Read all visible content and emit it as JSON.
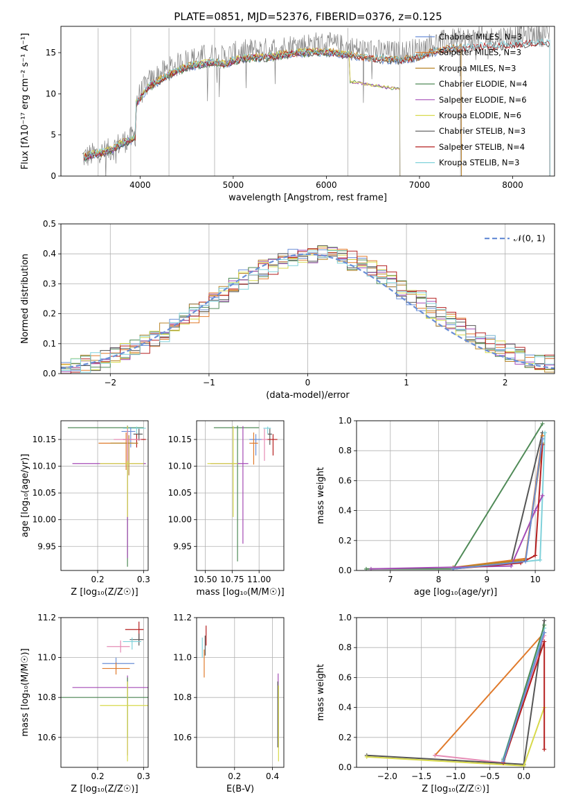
{
  "figure": {
    "title": "PLATE=0851, MJD=52376, FIBERID=0376, z=0.125",
    "colors": [
      "#6a8fd6",
      "#e07a2b",
      "#b9862a",
      "#4f8a57",
      "#a44ab5",
      "#d7d94a",
      "#555555",
      "#b41e1e",
      "#7fd1da",
      "#e58bb5"
    ]
  },
  "chart_data": [
    {
      "id": "spectrum",
      "type": "line",
      "xlabel": "wavelength [Angstrom, rest frame]",
      "ylabel": "Flux [fλ10⁻¹⁷ erg cm⁻² s⁻¹ A⁻¹]",
      "xlim": [
        3150,
        8450
      ],
      "ylim": [
        0,
        18.2
      ],
      "xticks": [
        4000,
        5000,
        6000,
        7000,
        8000
      ],
      "yticks": [
        0,
        5,
        10,
        15
      ],
      "grid": false,
      "legend_placement": "top-right",
      "observed": {
        "x": [
          3400,
          3500,
          3600,
          3700,
          3800,
          3900,
          4000,
          4100,
          4200,
          4300,
          4400,
          4500,
          4600,
          4700,
          4800,
          4900,
          5000,
          5100,
          5200,
          5300,
          5400,
          5500,
          5600,
          5700,
          5800,
          5900,
          6000,
          6100,
          6200,
          6300,
          6400,
          6500,
          6600,
          6700,
          6800,
          6900,
          7000,
          7100,
          7200,
          7300,
          7400,
          7500,
          7600,
          7700,
          7800,
          7900,
          8000,
          8100,
          8200
        ],
        "y": [
          4.2,
          4.8,
          5.2,
          6.0,
          7.5,
          8.2,
          10.0,
          11.5,
          12.3,
          13.0,
          13.5,
          14.1,
          14.3,
          14.6,
          14.7,
          14.4,
          14.9,
          15.1,
          15.3,
          15.3,
          15.4,
          15.6,
          15.8,
          15.9,
          16.0,
          16.1,
          16.0,
          15.9,
          15.7,
          15.5,
          15.3,
          15.2,
          15.1,
          15.0,
          15.0,
          15.2,
          15.4,
          15.9,
          16.2,
          16.4,
          16.5,
          16.6,
          16.7,
          16.8,
          16.7,
          16.9,
          17.0,
          17.1,
          17.2
        ]
      },
      "series": [
        {
          "name": "Chabrier MILES, N<sub>SSP</sub>=3",
          "label": "Chabrier MILES, N_SSP=3",
          "color": "#6a8fd6",
          "end": 7450
        },
        {
          "name": "Salpeter MILES, N_SSP=3",
          "label": "Salpeter MILES, N_SSP=3",
          "color": "#e07a2b",
          "end": 7450
        },
        {
          "name": "Kroupa MILES, N_SSP=3",
          "label": "Kroupa MILES, N_SSP=3",
          "color": "#b9862a",
          "end": 7450
        },
        {
          "name": "Chabrier ELODIE, N_SSP=4",
          "label": "Chabrier ELODIE, N_SSP=4",
          "color": "#4f8a57",
          "end": 6790
        },
        {
          "name": "Salpeter ELODIE, N_SSP=6",
          "label": "Salpeter ELODIE, N_SSP=6",
          "color": "#a44ab5",
          "end": 6790
        },
        {
          "name": "Kroupa ELODIE, N_SSP=6",
          "label": "Kroupa ELODIE, N_SSP=6",
          "color": "#d7d94a",
          "end": 6790
        },
        {
          "name": "Chabrier STELIB, N_SSP=3",
          "label": "Chabrier STELIB, N_SSP=3",
          "color": "#555555",
          "end": 8400
        },
        {
          "name": "Salpeter STELIB, N_SSP=4",
          "label": "Salpeter STELIB, N_SSP=4",
          "color": "#b41e1e",
          "end": 8400
        },
        {
          "name": "Kroupa STELIB, N_SSP=3",
          "label": "Kroupa STELIB, N_SSP=3",
          "color": "#7fd1da",
          "end": 8400
        }
      ]
    },
    {
      "id": "residuals",
      "type": "line",
      "xlabel": "(data-model)/error",
      "ylabel": "Normed distribution",
      "xlim": [
        -2.5,
        2.5
      ],
      "ylim": [
        0,
        0.5
      ],
      "xticks": [
        -2,
        -1,
        0,
        1,
        2
      ],
      "yticks": [
        0.0,
        0.1,
        0.2,
        0.3,
        0.4,
        0.5
      ],
      "grid": true,
      "legend_placement": "top-right",
      "gaussian_label": "𝒩(0, 1)",
      "histogram_series_count": 9
    },
    {
      "id": "age-vs-Z",
      "type": "scatter",
      "xlabel": "Z [log₁₀(Z/Z☉)]",
      "ylabel": "age  [log₁₀(age/yr)]",
      "xlim": [
        0.12,
        0.31
      ],
      "ylim": [
        9.905,
        10.185
      ],
      "xticks": [
        0.2,
        0.3
      ],
      "yticks": [
        9.95,
        10.0,
        10.05,
        10.1,
        10.15
      ],
      "grid": true,
      "points": [
        {
          "x": 0.265,
          "y": 10.172,
          "xerr": [
            0.13,
            0.035
          ],
          "yerr": [
            0.26,
            0.004
          ],
          "color": "#4f8a57"
        },
        {
          "x": 0.285,
          "y": 10.171,
          "xerr": [
            0.03,
            0.02
          ],
          "yerr": [
            0.01,
            0.003
          ],
          "color": "#7fd1da"
        },
        {
          "x": 0.272,
          "y": 10.165,
          "xerr": [
            0.02,
            0.01
          ],
          "yerr": [
            0.03,
            0.008
          ],
          "color": "#6a8fd6"
        },
        {
          "x": 0.29,
          "y": 10.16,
          "xerr": [
            0.012,
            0.008
          ],
          "yerr": [
            0.012,
            0.01
          ],
          "color": "#555555"
        },
        {
          "x": 0.285,
          "y": 10.15,
          "xerr": [
            0.03,
            0.02
          ],
          "yerr": [
            0.015,
            0.01
          ],
          "color": "#b41e1e"
        },
        {
          "x": 0.262,
          "y": 10.143,
          "xerr": [
            0.06,
            0.015
          ],
          "yerr": [
            0.05,
            0.02
          ],
          "color": "#e07a2b"
        },
        {
          "x": 0.268,
          "y": 10.143,
          "xerr": [
            0.04,
            0.02
          ],
          "yerr": [
            0.06,
            0.015
          ],
          "color": "#b9862a"
        },
        {
          "x": 0.265,
          "y": 10.105,
          "xerr": [
            0.12,
            0.04
          ],
          "yerr": [
            0.177,
            0.07
          ],
          "color": "#a44ab5"
        },
        {
          "x": 0.265,
          "y": 10.105,
          "xerr": [
            0.06,
            0.035
          ],
          "yerr": [
            0.1,
            0.07
          ],
          "color": "#d7d94a"
        },
        {
          "x": 0.265,
          "y": 10.15,
          "xerr": [
            0.03,
            0.03
          ],
          "yerr": [
            0.04,
            0.02
          ],
          "color": "#e58bb5"
        }
      ]
    },
    {
      "id": "age-vs-mass",
      "type": "scatter",
      "xlabel": "mass [log₁₀(M/M☉)]",
      "ylabel": "",
      "xlim": [
        10.42,
        11.23
      ],
      "ylim": [
        9.905,
        10.185
      ],
      "xticks": [
        10.5,
        10.75,
        11.0
      ],
      "yticks": [
        9.95,
        10.0,
        10.05,
        10.1,
        10.15
      ],
      "grid": true,
      "points": [
        {
          "x": 10.8,
          "y": 10.172,
          "xerr": [
            0.22,
            0.2
          ],
          "yerr": [
            0.25,
            0.004
          ],
          "color": "#4f8a57"
        },
        {
          "x": 11.08,
          "y": 10.171,
          "xerr": [
            0.04,
            0.03
          ],
          "yerr": [
            0.01,
            0.003
          ],
          "color": "#7fd1da"
        },
        {
          "x": 10.97,
          "y": 10.15,
          "xerr": [
            0.06,
            0.06
          ],
          "yerr": [
            0.03,
            0.01
          ],
          "color": "#6a8fd6"
        },
        {
          "x": 11.1,
          "y": 10.16,
          "xerr": [
            0.02,
            0.02
          ],
          "yerr": [
            0.02,
            0.01
          ],
          "color": "#555555"
        },
        {
          "x": 11.13,
          "y": 10.15,
          "xerr": [
            0.06,
            0.04
          ],
          "yerr": [
            0.03,
            0.01
          ],
          "color": "#b41e1e"
        },
        {
          "x": 10.95,
          "y": 10.143,
          "xerr": [
            0.04,
            0.04
          ],
          "yerr": [
            0.04,
            0.02
          ],
          "color": "#e07a2b"
        },
        {
          "x": 10.85,
          "y": 10.105,
          "xerr": [
            0.3,
            0.05
          ],
          "yerr": [
            0.15,
            0.07
          ],
          "color": "#a44ab5"
        },
        {
          "x": 10.76,
          "y": 10.105,
          "xerr": [
            0.24,
            0.04
          ],
          "yerr": [
            0.1,
            0.07
          ],
          "color": "#d7d94a"
        },
        {
          "x": 11.05,
          "y": 10.15,
          "xerr": [
            0.03,
            0.03
          ],
          "yerr": [
            0.04,
            0.02
          ],
          "color": "#e58bb5"
        }
      ]
    },
    {
      "id": "weight-vs-age",
      "type": "line",
      "xlabel": "age  [log₁₀(age/yr)]",
      "ylabel": "mass weight",
      "xlim": [
        6.3,
        10.4
      ],
      "ylim": [
        0,
        1.0
      ],
      "xticks": [
        7,
        8,
        9,
        10
      ],
      "yticks": [
        0.0,
        0.2,
        0.4,
        0.6,
        0.8,
        1.0
      ],
      "grid": true,
      "series": [
        {
          "color": "#4f8a57",
          "x": [
            6.5,
            8.3,
            10.15
          ],
          "y": [
            0.01,
            0.01,
            0.98
          ]
        },
        {
          "color": "#555555",
          "x": [
            8.3,
            9.5,
            10.15
          ],
          "y": [
            0.01,
            0.05,
            0.92
          ]
        },
        {
          "color": "#7fd1da",
          "x": [
            8.3,
            10.1,
            10.2
          ],
          "y": [
            0.01,
            0.07,
            0.92
          ]
        },
        {
          "color": "#e07a2b",
          "x": [
            8.3,
            9.8,
            10.15
          ],
          "y": [
            0.02,
            0.08,
            0.9
          ]
        },
        {
          "color": "#b9862a",
          "x": [
            8.3,
            9.8,
            10.15
          ],
          "y": [
            0.02,
            0.07,
            0.85
          ]
        },
        {
          "color": "#a44ab5",
          "x": [
            6.6,
            9.5,
            10.0,
            10.15
          ],
          "y": [
            0.01,
            0.03,
            0.4,
            0.5
          ]
        },
        {
          "color": "#b41e1e",
          "x": [
            8.3,
            9.7,
            10.0,
            10.15
          ],
          "y": [
            0.01,
            0.05,
            0.1,
            0.84
          ]
        },
        {
          "color": "#6a8fd6",
          "x": [
            8.3,
            9.8,
            10.15
          ],
          "y": [
            0.01,
            0.06,
            0.88
          ]
        }
      ]
    },
    {
      "id": "mass-vs-Z",
      "type": "scatter",
      "xlabel": "Z [log₁₀(Z/Z☉)]",
      "ylabel": "mass [log₁₀(M/M☉)]",
      "xlim": [
        0.12,
        0.31
      ],
      "ylim": [
        10.45,
        11.2
      ],
      "xticks": [
        0.2,
        0.3
      ],
      "yticks": [
        10.6,
        10.8,
        11.0,
        11.2
      ],
      "grid": true,
      "points": [
        {
          "x": 0.29,
          "y": 11.14,
          "xerr": [
            0.03,
            0.01
          ],
          "yerr": [
            0.05,
            0.04
          ],
          "color": "#b41e1e"
        },
        {
          "x": 0.29,
          "y": 11.09,
          "xerr": [
            0.02,
            0.01
          ],
          "yerr": [
            0.03,
            0.03
          ],
          "color": "#555555"
        },
        {
          "x": 0.275,
          "y": 11.08,
          "xerr": [
            0.02,
            0.02
          ],
          "yerr": [
            0.04,
            0.02
          ],
          "color": "#7fd1da"
        },
        {
          "x": 0.25,
          "y": 11.055,
          "xerr": [
            0.03,
            0.02
          ],
          "yerr": [
            0.03,
            0.03
          ],
          "color": "#e58bb5"
        },
        {
          "x": 0.24,
          "y": 10.97,
          "xerr": [
            0.03,
            0.04
          ],
          "yerr": [
            0.03,
            0.03
          ],
          "color": "#6a8fd6"
        },
        {
          "x": 0.24,
          "y": 10.945,
          "xerr": [
            0.03,
            0.03
          ],
          "yerr": [
            0.03,
            0.03
          ],
          "color": "#e07a2b"
        },
        {
          "x": 0.265,
          "y": 10.85,
          "xerr": [
            0.12,
            0.045
          ],
          "yerr": [
            0.34,
            0.06
          ],
          "color": "#a44ab5"
        },
        {
          "x": 0.265,
          "y": 10.8,
          "xerr": [
            0.15,
            0.045
          ],
          "yerr": [
            0.2,
            0.1
          ],
          "color": "#4f8a57"
        },
        {
          "x": 0.265,
          "y": 10.76,
          "xerr": [
            0.06,
            0.045
          ],
          "yerr": [
            0.28,
            0.12
          ],
          "color": "#d7d94a"
        }
      ]
    },
    {
      "id": "mass-vs-EBV",
      "type": "scatter",
      "xlabel": "E(B-V)",
      "ylabel": "",
      "xlim": [
        0.0,
        0.46
      ],
      "ylim": [
        10.45,
        11.2
      ],
      "xticks": [
        0.2,
        0.4
      ],
      "yticks": [
        10.6,
        10.8,
        11.0,
        11.2
      ],
      "grid": true,
      "points": [
        {
          "x": 0.05,
          "y": 11.11,
          "xerr": [
            0,
            0
          ],
          "yerr": [
            0.05,
            0.05
          ],
          "color": "#b41e1e"
        },
        {
          "x": 0.045,
          "y": 11.06,
          "xerr": [
            0,
            0
          ],
          "yerr": [
            0.05,
            0.05
          ],
          "color": "#555555"
        },
        {
          "x": 0.04,
          "y": 10.97,
          "xerr": [
            0,
            0
          ],
          "yerr": [
            0.07,
            0.07
          ],
          "color": "#e07a2b"
        },
        {
          "x": 0.03,
          "y": 11.05,
          "xerr": [
            0,
            0
          ],
          "yerr": [
            0.05,
            0.05
          ],
          "color": "#7fd1da"
        },
        {
          "x": 0.43,
          "y": 10.72,
          "xerr": [
            0,
            0
          ],
          "yerr": [
            0.17,
            0.2
          ],
          "color": "#a44ab5"
        },
        {
          "x": 0.428,
          "y": 10.68,
          "xerr": [
            0,
            0
          ],
          "yerr": [
            0.13,
            0.2
          ],
          "color": "#555555"
        },
        {
          "x": 0.432,
          "y": 10.66,
          "xerr": [
            0,
            0
          ],
          "yerr": [
            0.18,
            0.2
          ],
          "color": "#d7d94a"
        }
      ]
    },
    {
      "id": "weight-vs-Z",
      "type": "line",
      "xlabel": "Z [log₁₀(Z/Z☉)]",
      "ylabel": "mass weight",
      "xlim": [
        -2.45,
        0.45
      ],
      "ylim": [
        0,
        1.0
      ],
      "xticks": [
        -2.0,
        -1.5,
        -1.0,
        -0.5,
        0.0
      ],
      "yticks": [
        0.0,
        0.2,
        0.4,
        0.6,
        0.8,
        1.0
      ],
      "grid": true,
      "series": [
        {
          "color": "#e07a2b",
          "x": [
            -1.3,
            0.3
          ],
          "y": [
            0.08,
            0.9
          ]
        },
        {
          "color": "#e58bb5",
          "x": [
            -1.3,
            -0.3,
            0.3
          ],
          "y": [
            0.08,
            0.03,
            0.88
          ]
        },
        {
          "color": "#555555",
          "x": [
            -2.3,
            0.0,
            0.3
          ],
          "y": [
            0.08,
            0.02,
            0.98
          ]
        },
        {
          "color": "#d7d94a",
          "x": [
            -2.3,
            0.0,
            0.3
          ],
          "y": [
            0.07,
            0.01,
            0.4
          ]
        },
        {
          "color": "#7fd1da",
          "x": [
            -0.3,
            0.3
          ],
          "y": [
            0.06,
            0.93
          ]
        },
        {
          "color": "#b41e1e",
          "x": [
            -0.3,
            0.3,
            0.3
          ],
          "y": [
            0.03,
            0.84,
            0.12
          ]
        },
        {
          "color": "#4f8a57",
          "x": [
            -0.3,
            0.3
          ],
          "y": [
            0.05,
            0.95
          ]
        },
        {
          "color": "#6a8fd6",
          "x": [
            -0.3,
            0.3
          ],
          "y": [
            0.04,
            0.9
          ]
        }
      ]
    }
  ]
}
